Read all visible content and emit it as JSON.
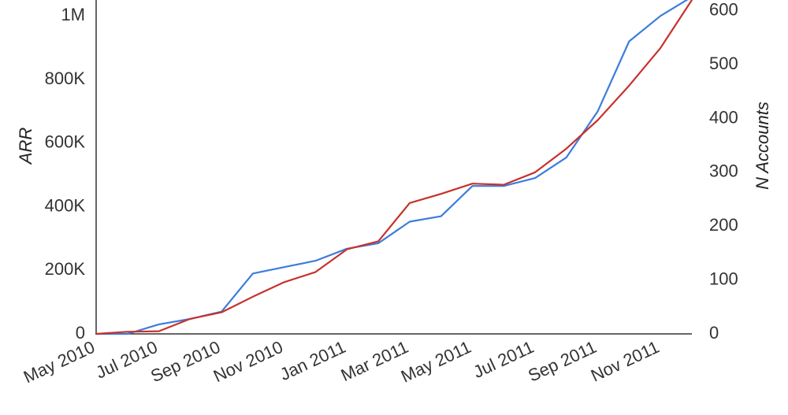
{
  "chart_data": {
    "type": "line",
    "xlabel": "",
    "ylabel": "ARR",
    "y2label": "N Accounts",
    "x_tick_labels": [
      "May 2010",
      "Jul 2010",
      "Sep 2010",
      "Nov 2010",
      "Jan 2011",
      "Mar 2011",
      "May 2011",
      "Jul 2011",
      "Sep 2011",
      "Nov 2011"
    ],
    "y_ticks": [
      0,
      200000,
      400000,
      600000,
      800000,
      1000000
    ],
    "y_tick_labels": [
      "0",
      "200K",
      "400K",
      "600K",
      "800K",
      "1M"
    ],
    "y2_ticks": [
      0,
      100,
      200,
      300,
      400,
      500,
      600
    ],
    "y2_tick_labels": [
      "0",
      "100",
      "200",
      "300",
      "400",
      "500",
      "600"
    ],
    "ylim": [
      0,
      1050000
    ],
    "y2lim": [
      0,
      620
    ],
    "grid": false,
    "x": [
      "2010-05",
      "2010-06",
      "2010-07",
      "2010-08",
      "2010-09",
      "2010-10",
      "2010-11",
      "2010-12",
      "2011-01",
      "2011-02",
      "2011-03",
      "2011-04",
      "2011-05",
      "2011-06",
      "2011-07",
      "2011-08",
      "2011-09",
      "2011-10",
      "2011-11",
      "2011-12"
    ],
    "series": [
      {
        "axis": "left",
        "color": "#3b7ddd",
        "values": [
          0,
          0,
          30000,
          47000,
          70000,
          190000,
          210000,
          230000,
          268000,
          285000,
          353000,
          370000,
          465000,
          465000,
          490000,
          555000,
          700000,
          920000,
          1000000,
          1060000
        ]
      },
      {
        "axis": "right",
        "color": "#c8312d",
        "values": [
          0,
          4,
          5,
          28,
          40,
          69,
          96,
          115,
          157,
          172,
          243,
          260,
          279,
          277,
          300,
          344,
          397,
          461,
          531,
          620
        ]
      }
    ]
  }
}
